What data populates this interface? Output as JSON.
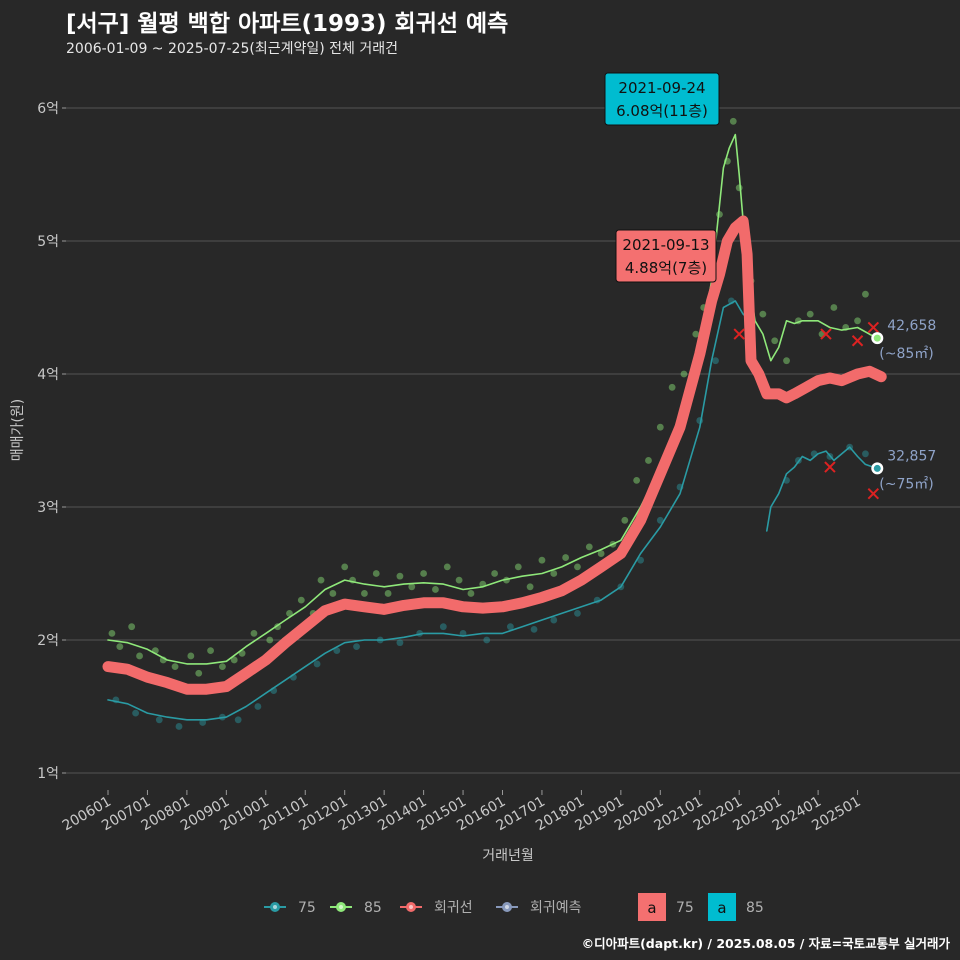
{
  "title": "[서구] 월평 백합 아파트(1993) 회귀선 예측",
  "subtitle": "2006-01-09 ~ 2025-07-25(최근계약일) 전체 거래건",
  "footer": "©디아파트(dapt.kr) / 2025.08.05 / 자료=국토교통부 실거래가",
  "colors": {
    "background": "#282828",
    "grid": "#555555",
    "s75": "#2a9ba4",
    "s85": "#8fe87a",
    "regression": "#f26b6b",
    "forecast": "#8899bb",
    "label75_fill": "#f47070",
    "label85_fill": "#00bcd0"
  },
  "chart_data": {
    "type": "line",
    "xlabel": "거래년월",
    "ylabel": "매매가(원)",
    "ylim": [
      0.95,
      6.55
    ],
    "xlim": [
      2006.0,
      2025.75
    ],
    "y_ticks": [
      {
        "value": 1,
        "label": "1억"
      },
      {
        "value": 2,
        "label": "2억"
      },
      {
        "value": 3,
        "label": "3억"
      },
      {
        "value": 4,
        "label": "4억"
      },
      {
        "value": 5,
        "label": "5억"
      },
      {
        "value": 6,
        "label": "6억"
      }
    ],
    "x_ticks": [
      {
        "value": 2006.0,
        "label": "200601"
      },
      {
        "value": 2007.0,
        "label": "200701"
      },
      {
        "value": 2008.0,
        "label": "200801"
      },
      {
        "value": 2009.0,
        "label": "200901"
      },
      {
        "value": 2010.0,
        "label": "201001"
      },
      {
        "value": 2011.0,
        "label": "201101"
      },
      {
        "value": 2012.0,
        "label": "201201"
      },
      {
        "value": 2013.0,
        "label": "201301"
      },
      {
        "value": 2014.0,
        "label": "201401"
      },
      {
        "value": 2015.0,
        "label": "201501"
      },
      {
        "value": 2016.0,
        "label": "201601"
      },
      {
        "value": 2017.0,
        "label": "201701"
      },
      {
        "value": 2018.0,
        "label": "201801"
      },
      {
        "value": 2019.0,
        "label": "201901"
      },
      {
        "value": 2020.0,
        "label": "202001"
      },
      {
        "value": 2021.0,
        "label": "202101"
      },
      {
        "value": 2022.0,
        "label": "202201"
      },
      {
        "value": 2023.0,
        "label": "202301"
      },
      {
        "value": 2024.0,
        "label": "202401"
      },
      {
        "value": 2025.0,
        "label": "202501"
      }
    ],
    "series": [
      {
        "name": "85",
        "key": "s85",
        "x": [
          2006.0,
          2006.5,
          2007.0,
          2007.5,
          2008.0,
          2008.5,
          2009.0,
          2009.5,
          2010.0,
          2010.5,
          2011.0,
          2011.5,
          2012.0,
          2012.5,
          2013.0,
          2013.5,
          2014.0,
          2014.5,
          2015.0,
          2015.5,
          2016.0,
          2016.5,
          2017.0,
          2017.5,
          2018.0,
          2018.5,
          2019.0,
          2019.5,
          2020.0,
          2020.5,
          2021.0,
          2021.3,
          2021.6,
          2021.75,
          2021.9,
          2022.0,
          2022.2,
          2022.4,
          2022.6,
          2022.8,
          2023.0,
          2023.2,
          2023.4,
          2023.6,
          2024.0,
          2024.3,
          2024.6,
          2025.0,
          2025.3,
          2025.5
        ],
        "y": [
          2.0,
          1.98,
          1.93,
          1.85,
          1.82,
          1.82,
          1.84,
          1.95,
          2.05,
          2.15,
          2.25,
          2.38,
          2.45,
          2.42,
          2.4,
          2.42,
          2.43,
          2.42,
          2.38,
          2.4,
          2.45,
          2.48,
          2.5,
          2.55,
          2.62,
          2.68,
          2.75,
          3.0,
          3.3,
          3.7,
          4.2,
          4.7,
          5.55,
          5.7,
          5.8,
          5.5,
          4.8,
          4.4,
          4.3,
          4.1,
          4.2,
          4.4,
          4.38,
          4.4,
          4.4,
          4.35,
          4.33,
          4.35,
          4.3,
          4.27
        ]
      },
      {
        "name": "75",
        "key": "s75",
        "x": [
          2006.0,
          2006.5,
          2007.0,
          2007.5,
          2008.0,
          2008.5,
          2009.0,
          2009.5,
          2010.0,
          2010.5,
          2011.0,
          2011.5,
          2012.0,
          2012.5,
          2013.0,
          2013.5,
          2014.0,
          2014.5,
          2015.0,
          2015.5,
          2016.0,
          2016.5,
          2017.0,
          2017.5,
          2018.0,
          2018.5,
          2019.0,
          2019.5,
          2020.0,
          2020.5,
          2021.0,
          2021.3,
          2021.6,
          2021.9,
          2022.1,
          2022.3
        ],
        "y": [
          1.55,
          1.52,
          1.45,
          1.42,
          1.4,
          1.4,
          1.42,
          1.5,
          1.6,
          1.7,
          1.8,
          1.9,
          1.98,
          2.0,
          2.0,
          2.02,
          2.05,
          2.05,
          2.03,
          2.05,
          2.05,
          2.1,
          2.15,
          2.2,
          2.25,
          2.3,
          2.4,
          2.65,
          2.85,
          3.1,
          3.6,
          4.1,
          4.5,
          4.55,
          4.45,
          4.4
        ]
      },
      {
        "name": "75",
        "key": "s75b",
        "x": [
          2022.7,
          2022.8,
          2023.0,
          2023.2,
          2023.4,
          2023.6,
          2023.8,
          2024.0,
          2024.2,
          2024.4,
          2024.6,
          2024.8,
          2025.0,
          2025.2,
          2025.4,
          2025.5
        ],
        "y": [
          2.82,
          3.0,
          3.1,
          3.25,
          3.3,
          3.38,
          3.35,
          3.4,
          3.42,
          3.35,
          3.4,
          3.45,
          3.38,
          3.32,
          3.3,
          3.29
        ]
      },
      {
        "name": "회귀선",
        "key": "reg",
        "x": [
          2006.0,
          2006.5,
          2007.0,
          2007.5,
          2008.0,
          2008.5,
          2009.0,
          2009.5,
          2010.0,
          2010.5,
          2011.0,
          2011.5,
          2012.0,
          2012.5,
          2013.0,
          2013.5,
          2014.0,
          2014.5,
          2015.0,
          2015.5,
          2016.0,
          2016.5,
          2017.0,
          2017.5,
          2018.0,
          2018.5,
          2019.0,
          2019.5,
          2020.0,
          2020.5,
          2021.0,
          2021.3,
          2021.5,
          2021.7,
          2021.9,
          2022.1,
          2022.2,
          2022.3,
          2022.5,
          2022.7,
          2023.0,
          2023.2,
          2023.4,
          2023.7,
          2024.0,
          2024.3,
          2024.6,
          2025.0,
          2025.3,
          2025.6
        ],
        "y": [
          1.8,
          1.78,
          1.72,
          1.68,
          1.63,
          1.63,
          1.65,
          1.75,
          1.85,
          1.98,
          2.1,
          2.22,
          2.27,
          2.25,
          2.23,
          2.26,
          2.28,
          2.28,
          2.25,
          2.24,
          2.25,
          2.28,
          2.32,
          2.37,
          2.45,
          2.55,
          2.65,
          2.9,
          3.25,
          3.6,
          4.15,
          4.55,
          4.75,
          5.0,
          5.1,
          5.15,
          4.9,
          4.1,
          4.0,
          3.85,
          3.85,
          3.82,
          3.85,
          3.9,
          3.95,
          3.97,
          3.95,
          4.0,
          4.02,
          3.98
        ]
      }
    ],
    "scatter": [
      {
        "key": "p85",
        "x": [
          2006.1,
          2006.3,
          2006.6,
          2006.8,
          2007.2,
          2007.4,
          2007.7,
          2008.1,
          2008.3,
          2008.6,
          2008.9,
          2009.2,
          2009.4,
          2009.7,
          2010.1,
          2010.3,
          2010.6,
          2010.9,
          2011.2,
          2011.4,
          2011.7,
          2012.0,
          2012.2,
          2012.5,
          2012.8,
          2013.1,
          2013.4,
          2013.7,
          2014.0,
          2014.3,
          2014.6,
          2014.9,
          2015.2,
          2015.5,
          2015.8,
          2016.1,
          2016.4,
          2016.7,
          2017.0,
          2017.3,
          2017.6,
          2017.9,
          2018.2,
          2018.5,
          2018.8,
          2019.1,
          2019.4,
          2019.7,
          2020.0,
          2020.3,
          2020.6,
          2020.9,
          2021.1,
          2021.3,
          2021.5,
          2021.7,
          2021.85,
          2022.0,
          2022.3,
          2022.6,
          2022.9,
          2023.2,
          2023.5,
          2023.8,
          2024.1,
          2024.4,
          2024.7,
          2025.0,
          2025.2
        ],
        "y": [
          2.05,
          1.95,
          2.1,
          1.88,
          1.92,
          1.85,
          1.8,
          1.88,
          1.75,
          1.92,
          1.8,
          1.85,
          1.9,
          2.05,
          2.0,
          2.1,
          2.2,
          2.3,
          2.2,
          2.45,
          2.35,
          2.55,
          2.45,
          2.35,
          2.5,
          2.35,
          2.48,
          2.4,
          2.5,
          2.38,
          2.55,
          2.45,
          2.35,
          2.42,
          2.5,
          2.45,
          2.55,
          2.4,
          2.6,
          2.5,
          2.62,
          2.55,
          2.7,
          2.65,
          2.72,
          2.9,
          3.2,
          3.35,
          3.6,
          3.9,
          4.0,
          4.3,
          4.5,
          4.9,
          5.2,
          5.6,
          5.9,
          5.4,
          4.7,
          4.45,
          4.25,
          4.1,
          4.4,
          4.45,
          4.3,
          4.5,
          4.35,
          4.4,
          4.6
        ]
      },
      {
        "key": "p75",
        "x": [
          2006.2,
          2006.7,
          2007.3,
          2007.8,
          2008.4,
          2008.9,
          2009.3,
          2009.8,
          2010.2,
          2010.7,
          2011.3,
          2011.8,
          2012.3,
          2012.9,
          2013.4,
          2013.9,
          2014.5,
          2015.0,
          2015.6,
          2016.2,
          2016.8,
          2017.3,
          2017.9,
          2018.4,
          2019.0,
          2019.5,
          2020.0,
          2020.5,
          2021.0,
          2021.4,
          2021.8,
          2023.2,
          2023.5,
          2023.9,
          2024.3,
          2024.8,
          2025.2
        ],
        "y": [
          1.55,
          1.45,
          1.4,
          1.35,
          1.38,
          1.42,
          1.4,
          1.5,
          1.62,
          1.72,
          1.82,
          1.92,
          1.95,
          2.0,
          1.98,
          2.05,
          2.1,
          2.05,
          2.0,
          2.1,
          2.08,
          2.15,
          2.2,
          2.3,
          2.4,
          2.6,
          2.9,
          3.15,
          3.65,
          4.1,
          4.55,
          3.2,
          3.35,
          3.4,
          3.38,
          3.45,
          3.4
        ]
      }
    ],
    "end_markers": [
      {
        "key": "s85",
        "x": 2025.5,
        "y": 4.27,
        "value": "42,658",
        "area": "(~85㎡)"
      },
      {
        "key": "s75b",
        "x": 2025.5,
        "y": 3.29,
        "value": "32,857",
        "area": "(~75㎡)"
      }
    ],
    "cross_markers": [
      {
        "x": 2022.0,
        "y": 4.3
      },
      {
        "x": 2024.2,
        "y": 4.3
      },
      {
        "x": 2024.3,
        "y": 3.3
      },
      {
        "x": 2025.0,
        "y": 4.25
      },
      {
        "x": 2025.4,
        "y": 4.35
      },
      {
        "x": 2025.4,
        "y": 3.1
      }
    ],
    "annotations": [
      {
        "key": "label85",
        "x": 2021.73,
        "y": 6.08,
        "date": "2021-09-24",
        "price": "6.08억(11층)"
      },
      {
        "key": "label75",
        "x": 2021.7,
        "y": 4.88,
        "date": "2021-09-13",
        "price": "4.88억(7층)"
      }
    ],
    "legend": [
      {
        "key": "s75",
        "label": "75",
        "type": "line"
      },
      {
        "key": "s85",
        "label": "85",
        "type": "line"
      },
      {
        "key": "reg",
        "label": "회귀선",
        "type": "line"
      },
      {
        "key": "fc",
        "label": "회귀예측",
        "type": "line"
      },
      {
        "key": "lab75",
        "label": "75",
        "type": "box",
        "glyph": "a"
      },
      {
        "key": "lab85",
        "label": "85",
        "type": "box",
        "glyph": "a"
      }
    ]
  }
}
